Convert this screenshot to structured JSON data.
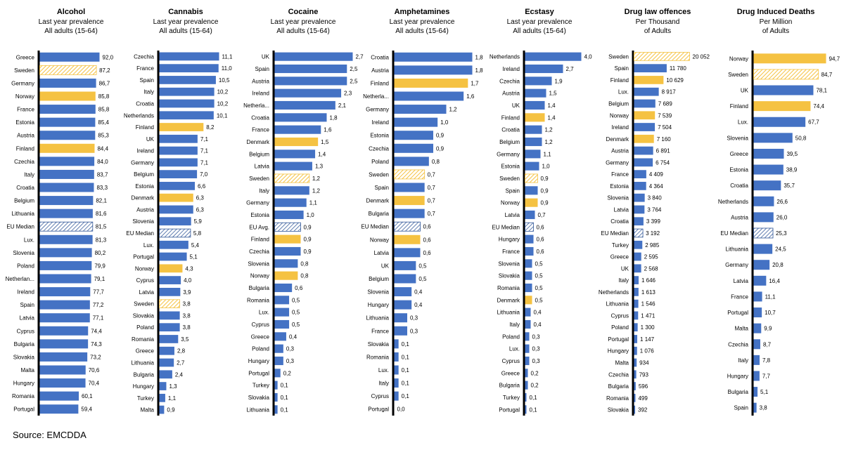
{
  "source": "Source: EMCDDA",
  "colors": {
    "bar": "#4472C4",
    "highlight": "#F5C242",
    "hatch": "#F5C242",
    "hatch_eu": "#2F5597",
    "axis": "#000000"
  },
  "chart_data": [
    {
      "type": "bar",
      "title": "Alcohol",
      "subtitle": [
        "Last year prevalence",
        "All adults (15-64)"
      ],
      "max": 92.0,
      "categories": [
        "Greece",
        "Sweden",
        "Germany",
        "Norway",
        "France",
        "Estonia",
        "Austria",
        "Finland",
        "Czechia",
        "Italy",
        "Croatia",
        "Belgium",
        "Lithuania",
        "EU Median",
        "Lux.",
        "Slovenia",
        "Poland",
        "Netherlan...",
        "Ireland",
        "Spain",
        "Latvia",
        "Cyprus",
        "Bulgaria",
        "Slovakia",
        "Malta",
        "Hungary",
        "Romania",
        "Portugal"
      ],
      "values": [
        92.0,
        87.2,
        86.7,
        85.8,
        85.8,
        85.4,
        85.3,
        84.4,
        84.0,
        83.7,
        83.3,
        82.1,
        81.6,
        81.5,
        81.3,
        80.2,
        79.9,
        79.1,
        77.7,
        77.2,
        77.1,
        74.4,
        74.3,
        73.2,
        70.6,
        70.4,
        60.1,
        59.4
      ],
      "labels": [
        "92,0",
        "87,2",
        "86,7",
        "85,8",
        "85,8",
        "85,4",
        "85,3",
        "84,4",
        "84,0",
        "83,7",
        "83,3",
        "82,1",
        "81,6",
        "81,5",
        "81,3",
        "80,2",
        "79,9",
        "79,1",
        "77,7",
        "77,2",
        "77,1",
        "74,4",
        "74,3",
        "73,2",
        "70,6",
        "70,4",
        "60,1",
        "59,4"
      ],
      "highlight": [
        "Norway",
        "Finland"
      ],
      "hatched": [
        "Sweden"
      ],
      "hatched_eu": [
        "EU Median"
      ]
    },
    {
      "type": "bar",
      "title": "Cannabis",
      "subtitle": [
        "Last year prevalence",
        "All adults (15-64)"
      ],
      "max": 11.1,
      "categories": [
        "Czechia",
        "France",
        "Spain",
        "Italy",
        "Croatia",
        "Netherlands",
        "Finland",
        "UK",
        "Ireland",
        "Germany",
        "Belgium",
        "Estonia",
        "Denmark",
        "Austria",
        "Slovenia",
        "EU Median",
        "Lux.",
        "Portugal",
        "Norway",
        "Cyprus",
        "Latvia",
        "Sweden",
        "Slovakia",
        "Poland",
        "Romania",
        "Greece",
        "Lithuania",
        "Bulgaria",
        "Hungary",
        "Turkey",
        "Malta"
      ],
      "values": [
        11.1,
        11.0,
        10.5,
        10.2,
        10.2,
        10.1,
        8.2,
        7.1,
        7.1,
        7.1,
        7.0,
        6.6,
        6.3,
        6.3,
        5.9,
        5.8,
        5.4,
        5.1,
        4.3,
        4.0,
        3.9,
        3.8,
        3.8,
        3.8,
        3.5,
        2.8,
        2.7,
        2.4,
        1.3,
        1.1,
        0.9
      ],
      "labels": [
        "11,1",
        "11,0",
        "10,5",
        "10,2",
        "10,2",
        "10,1",
        "8,2",
        "7,1",
        "7,1",
        "7,1",
        "7,0",
        "6,6",
        "6,3",
        "6,3",
        "5,9",
        "5,8",
        "5,4",
        "5,1",
        "4,3",
        "4,0",
        "3,9",
        "3,8",
        "3,8",
        "3,8",
        "3,5",
        "2,8",
        "2,7",
        "2,4",
        "1,3",
        "1,1",
        "0,9"
      ],
      "highlight": [
        "Finland",
        "Denmark",
        "Norway"
      ],
      "hatched": [
        "Sweden"
      ],
      "hatched_eu": [
        "EU Median"
      ]
    },
    {
      "type": "bar",
      "title": "Cocaine",
      "subtitle": [
        "Last year prevalence",
        "All adults (15-64)"
      ],
      "max": 2.7,
      "categories": [
        "UK",
        "Spain",
        "Austria",
        "Ireland",
        "Netherla...",
        "Croatia",
        "France",
        "Denmark",
        "Belgium",
        "Latvia",
        "Sweden",
        "Italy",
        "Germany",
        "Estonia",
        "EU Avg.",
        "Finland",
        "Czechia",
        "Slovenia",
        "Norway",
        "Bulgaria",
        "Romania",
        "Lux.",
        "Cyprus",
        "Greece",
        "Poland",
        "Hungary",
        "Portugal",
        "Turkey",
        "Slovakia",
        "Lithuania"
      ],
      "values": [
        2.7,
        2.5,
        2.5,
        2.3,
        2.1,
        1.8,
        1.6,
        1.5,
        1.4,
        1.3,
        1.2,
        1.2,
        1.1,
        1.0,
        0.9,
        0.9,
        0.9,
        0.8,
        0.8,
        0.6,
        0.5,
        0.5,
        0.5,
        0.4,
        0.3,
        0.3,
        0.2,
        0.1,
        0.1,
        0.1
      ],
      "labels": [
        "2,7",
        "2,5",
        "2,5",
        "2,3",
        "2,1",
        "1,8",
        "1,6",
        "1,5",
        "1,4",
        "1,3",
        "1,2",
        "1,2",
        "1,1",
        "1,0",
        "0,9",
        "0,9",
        "0,9",
        "0,8",
        "0,8",
        "0,6",
        "0,5",
        "0,5",
        "0,5",
        "0,4",
        "0,3",
        "0,3",
        "0,2",
        "0,1",
        "0,1",
        "0,1"
      ],
      "highlight": [
        "Denmark",
        "Finland",
        "Norway"
      ],
      "hatched": [
        "Sweden"
      ],
      "hatched_eu": [
        "EU Avg."
      ]
    },
    {
      "type": "bar",
      "title": "Amphetamines",
      "subtitle": [
        "Last year prevalence",
        "All adults (15-64)"
      ],
      "max": 1.8,
      "categories": [
        "Croatia",
        "Austria",
        "Finland",
        "Netherla...",
        "Germany",
        "Ireland",
        "Estonia",
        "Czechia",
        "Poland",
        "Sweden",
        "Spain",
        "Denmark",
        "Bulgaria",
        "EU Median",
        "Norway",
        "Latvia",
        "UK",
        "Belgium",
        "Slovenia",
        "Hungary",
        "Lithuania",
        "France",
        "Slovakia",
        "Romania",
        "Lux.",
        "Italy",
        "Cyprus",
        "Portugal"
      ],
      "values": [
        1.8,
        1.8,
        1.7,
        1.6,
        1.2,
        1.0,
        0.9,
        0.9,
        0.8,
        0.7,
        0.7,
        0.7,
        0.7,
        0.6,
        0.6,
        0.6,
        0.5,
        0.5,
        0.4,
        0.4,
        0.3,
        0.3,
        0.1,
        0.1,
        0.1,
        0.1,
        0.1,
        0.0
      ],
      "labels": [
        "1,8",
        "1,8",
        "1,7",
        "1,6",
        "1,2",
        "1,0",
        "0,9",
        "0,9",
        "0,8",
        "0,7",
        "0,7",
        "0,7",
        "0,7",
        "0,6",
        "0,6",
        "0,6",
        "0,5",
        "0,5",
        "0,4",
        "0,4",
        "0,3",
        "0,3",
        "0,1",
        "0,1",
        "0,1",
        "0,1",
        "0,1",
        "0,0"
      ],
      "highlight": [
        "Finland",
        "Denmark",
        "Norway"
      ],
      "hatched": [
        "Sweden"
      ],
      "hatched_eu": [
        "EU Median"
      ]
    },
    {
      "type": "bar",
      "title": "Ecstasy",
      "subtitle": [
        "Last year prevalence",
        "All adults (15-64)"
      ],
      "max": 4.0,
      "categories": [
        "Netherlands",
        "Ireland",
        "Czechia",
        "Austria",
        "UK",
        "Finland",
        "Croatia",
        "Belgium",
        "Germany",
        "Estonia",
        "Sweden",
        "Spain",
        "Norway",
        "Latvia",
        "EU Median",
        "Hungary",
        "France",
        "Slovenia",
        "Slovakia",
        "Romania",
        "Denmark",
        "Lithuania",
        "Italy",
        "Poland",
        "Lux.",
        "Cyprus",
        "Greece",
        "Bulgaria",
        "Turkey",
        "Portugal"
      ],
      "values": [
        4.0,
        2.7,
        1.9,
        1.5,
        1.4,
        1.4,
        1.2,
        1.2,
        1.1,
        1.0,
        0.9,
        0.9,
        0.9,
        0.7,
        0.6,
        0.6,
        0.6,
        0.5,
        0.5,
        0.5,
        0.5,
        0.4,
        0.4,
        0.3,
        0.3,
        0.3,
        0.2,
        0.2,
        0.1,
        0.1
      ],
      "labels": [
        "4,0",
        "2,7",
        "1,9",
        "1,5",
        "1,4",
        "1,4",
        "1,2",
        "1,2",
        "1,1",
        "1,0",
        "0,9",
        "0,9",
        "0,9",
        "0,7",
        "0,6",
        "0,6",
        "0,6",
        "0,5",
        "0,5",
        "0,5",
        "0,5",
        "0,4",
        "0,4",
        "0,3",
        "0,3",
        "0,3",
        "0,2",
        "0,2",
        "0,1",
        "0,1"
      ],
      "highlight": [
        "Finland",
        "Norway",
        "Denmark"
      ],
      "hatched": [
        "Sweden"
      ],
      "hatched_eu": [
        "EU Median"
      ]
    },
    {
      "type": "bar",
      "title": "Drug law offences",
      "subtitle": [
        "Per Thousand",
        "of Adults"
      ],
      "max": 20052,
      "categories": [
        "Sweden",
        "Spain",
        "Finland",
        "Lux.",
        "Belgium",
        "Norway",
        "Ireland",
        "Denmark",
        "Austria",
        "Germany",
        "France",
        "Estonia",
        "Slovenia",
        "Latvia",
        "Croatia",
        "EU Median",
        "Turkey",
        "Greece",
        "UK",
        "Italy",
        "Netherlands",
        "Lithuania",
        "Cyprus",
        "Poland",
        "Portugal",
        "Hungary",
        "Malta",
        "Czechia",
        "Bulgaria",
        "Romania",
        "Slovakia"
      ],
      "values": [
        20052,
        11780,
        10629,
        8917,
        7689,
        7539,
        7504,
        7160,
        6891,
        6754,
        4409,
        4364,
        3840,
        3764,
        3399,
        3192,
        2985,
        2595,
        2568,
        1646,
        1613,
        1546,
        1471,
        1300,
        1147,
        1076,
        934,
        793,
        596,
        499,
        392
      ],
      "labels": [
        "20 052",
        "11 780",
        "10 629",
        "8 917",
        "7 689",
        "7 539",
        "7 504",
        "7 160",
        "6 891",
        "6 754",
        "4 409",
        "4 364",
        "3 840",
        "3 764",
        "3 399",
        "3 192",
        "2 985",
        "2 595",
        "2 568",
        "1 646",
        "1 613",
        "1 546",
        "1 471",
        "1 300",
        "1 147",
        "1 076",
        "934",
        "793",
        "596",
        "499",
        "392"
      ],
      "highlight": [
        "Finland",
        "Norway",
        "Denmark"
      ],
      "hatched": [
        "Sweden"
      ],
      "hatched_eu": [
        "EU Median"
      ]
    },
    {
      "type": "bar",
      "title": "Drug Induced Deaths",
      "subtitle": [
        "Per Million",
        "of Adults"
      ],
      "max": 94.7,
      "categories": [
        "Norway",
        "Sweden",
        "UK",
        "Finland",
        "Lux.",
        "Slovenia",
        "Greece",
        "Estonia",
        "Croatia",
        "Netherlands",
        "Austria",
        "EU Median",
        "Lithuania",
        "Germany",
        "Latvia",
        "France",
        "Portugal",
        "Malta",
        "Czechia",
        "Italy",
        "Hungary",
        "Bulgaria",
        "Spain"
      ],
      "values": [
        94.7,
        84.7,
        78.1,
        74.4,
        67.7,
        50.8,
        39.5,
        38.9,
        35.7,
        26.6,
        26.0,
        25.3,
        24.5,
        20.8,
        16.4,
        11.1,
        10.7,
        9.9,
        8.7,
        7.8,
        7.7,
        5.1,
        3.8
      ],
      "labels": [
        "94,7",
        "84,7",
        "78,1",
        "74,4",
        "67,7",
        "50,8",
        "39,5",
        "38,9",
        "35,7",
        "26,6",
        "26,0",
        "25,3",
        "24,5",
        "20,8",
        "16,4",
        "11,1",
        "10,7",
        "9,9",
        "8,7",
        "7,8",
        "7,7",
        "5,1",
        "3,8"
      ],
      "highlight": [
        "Norway",
        "Finland"
      ],
      "hatched": [
        "Sweden"
      ],
      "hatched_eu": [
        "EU Median"
      ]
    }
  ]
}
